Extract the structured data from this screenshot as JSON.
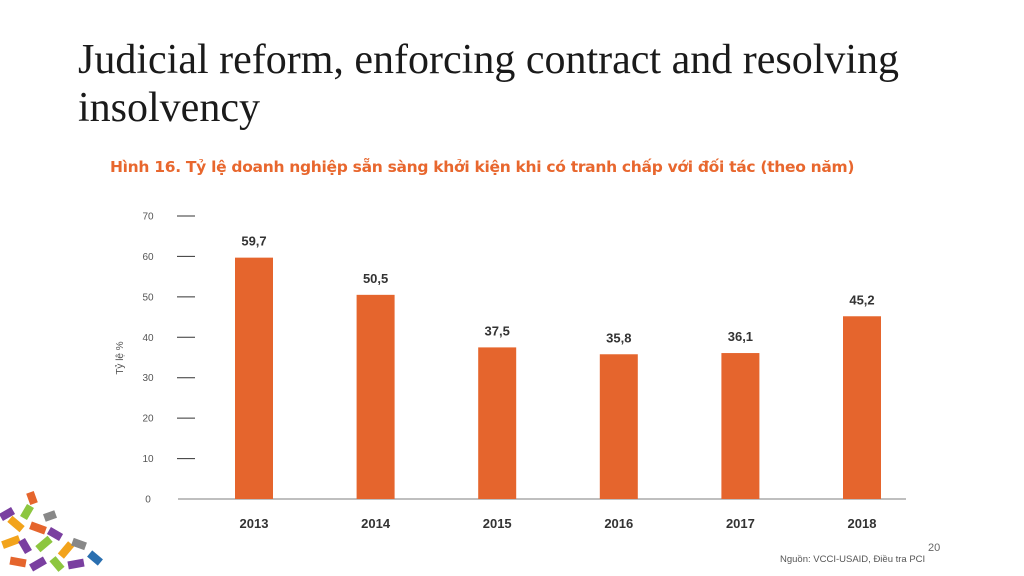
{
  "slide": {
    "title": "Judicial reform, enforcing contract and resolving insolvency",
    "page_number": "20"
  },
  "chart_data": {
    "type": "bar",
    "title": "Hình 16. Tỷ lệ doanh nghiệp sẵn sàng khởi kiện khi có tranh chấp với đối tác (theo năm)",
    "categories": [
      "2013",
      "2014",
      "2015",
      "2016",
      "2017",
      "2018"
    ],
    "values": [
      59.7,
      50.5,
      37.5,
      35.8,
      36.1,
      45.2
    ],
    "value_labels": [
      "59,7",
      "50,5",
      "37,5",
      "35,8",
      "36,1",
      "45,2"
    ],
    "xlabel": "",
    "ylabel": "Tỷ lệ %",
    "ylim": [
      0,
      70
    ],
    "yticks": [
      "0",
      "10",
      "20",
      "30",
      "40",
      "50",
      "60",
      "70"
    ],
    "bar_color": "#e5652d",
    "grid": false,
    "legend": "none",
    "source": "Nguồn: VCCI-USAID, Điều tra PCI"
  }
}
